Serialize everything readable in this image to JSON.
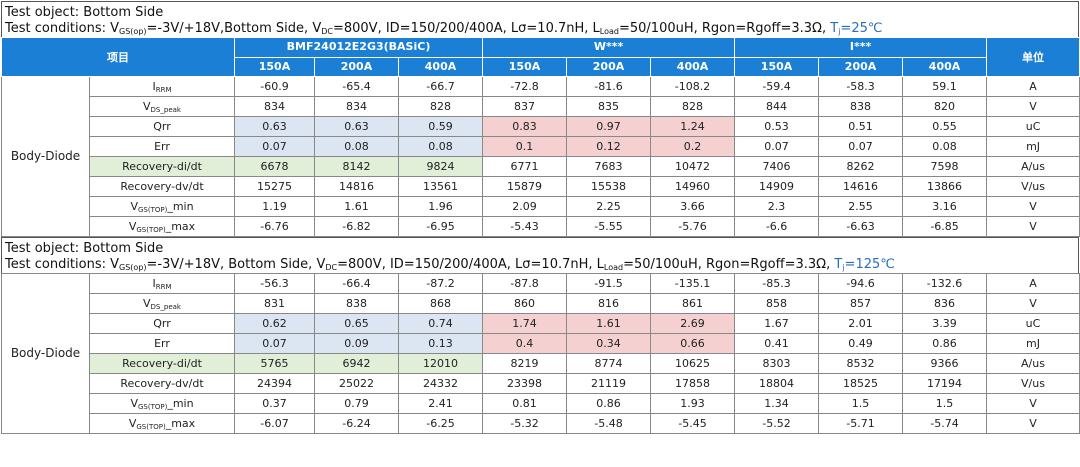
{
  "columns": {
    "item_label": "项目",
    "unit_label": "单位",
    "groups": [
      "BMF24012E2G3(BASiC)",
      "W***",
      "I***"
    ],
    "currents": [
      "150A",
      "200A",
      "400A"
    ]
  },
  "sections": [
    {
      "test_object": "Test object: Bottom Side",
      "cond": {
        "pre": "Test conditions: V",
        "sub1": "GS(op)",
        "mid1": "=-3V/+18V,Bottom Side, V",
        "sub2": "DC",
        "mid2": "=800V, ID=150/200/400A, Lσ=10.7nH, L",
        "sub3": "Load",
        "mid3": "=50/100uH, Rgon=Rgoff=3.3Ω, ",
        "tj_main": "T",
        "tj_sub": "j",
        "tj_val": "=25℃"
      },
      "group_label": "Body-Diode",
      "rows": [
        {
          "p_main": "I",
          "p_sub": "RRM",
          "p_suffix": "",
          "values": [
            "-60.9",
            "-65.4",
            "-66.7",
            "-72.8",
            "-81.6",
            "-108.2",
            "-59.4",
            "-58.3",
            "59.1"
          ],
          "unit": "A"
        },
        {
          "p_main": "V",
          "p_sub": "DS_peak",
          "p_suffix": "",
          "values": [
            "834",
            "834",
            "828",
            "837",
            "835",
            "828",
            "844",
            "838",
            "820"
          ],
          "unit": "V"
        },
        {
          "p_main": "Qrr",
          "p_sub": "",
          "p_suffix": "",
          "values": [
            "0.63",
            "0.63",
            "0.59",
            "0.83",
            "0.97",
            "1.24",
            "0.53",
            "0.51",
            "0.55"
          ],
          "unit": "uC"
        },
        {
          "p_main": "Err",
          "p_sub": "",
          "p_suffix": "",
          "values": [
            "0.07",
            "0.08",
            "0.08",
            "0.1",
            "0.12",
            "0.2",
            "0.07",
            "0.07",
            "0.08"
          ],
          "unit": "mJ"
        },
        {
          "p_main": "Recovery-di/dt",
          "p_sub": "",
          "p_suffix": "",
          "values": [
            "6678",
            "8142",
            "9824",
            "6771",
            "7683",
            "10472",
            "7406",
            "8262",
            "7598"
          ],
          "unit": "A/us"
        },
        {
          "p_main": "Recovery-dv/dt",
          "p_sub": "",
          "p_suffix": "",
          "values": [
            "15275",
            "14816",
            "13561",
            "15879",
            "15538",
            "14960",
            "14909",
            "14616",
            "13866"
          ],
          "unit": "V/us"
        },
        {
          "p_main": "V",
          "p_sub": "GS(TOP)",
          "p_suffix": "_min",
          "values": [
            "1.19",
            "1.61",
            "1.96",
            "2.09",
            "2.25",
            "3.66",
            "2.3",
            "2.55",
            "3.16"
          ],
          "unit": "V"
        },
        {
          "p_main": "V",
          "p_sub": "GS(TOP)",
          "p_suffix": "_max",
          "values": [
            "-6.76",
            "-6.82",
            "-6.95",
            "-5.43",
            "-5.55",
            "-5.76",
            "-6.6",
            "-6.63",
            "-6.85"
          ],
          "unit": "V"
        }
      ]
    },
    {
      "test_object": "Test object: Bottom Side",
      "cond": {
        "pre": "Test conditions: V",
        "sub1": "GS(op)",
        "mid1": "=-3V/+18V, Bottom Side, V",
        "sub2": "DC",
        "mid2": "=800V, ID=150/200/400A, Lσ=10.7nH, L",
        "sub3": "Load",
        "mid3": "=50/100uH, Rgon=Rgoff=3.3Ω, ",
        "tj_main": "T",
        "tj_sub": "j",
        "tj_val": "=125℃"
      },
      "group_label": "Body-Diode",
      "rows": [
        {
          "p_main": "I",
          "p_sub": "RRM",
          "p_suffix": "",
          "values": [
            "-56.3",
            "-66.4",
            "-87.2",
            "-87.8",
            "-91.5",
            "-135.1",
            "-85.3",
            "-94.6",
            "-132.6"
          ],
          "unit": "A"
        },
        {
          "p_main": "V",
          "p_sub": "DS_peak",
          "p_suffix": "",
          "values": [
            "831",
            "838",
            "868",
            "860",
            "816",
            "861",
            "858",
            "857",
            "836"
          ],
          "unit": "V"
        },
        {
          "p_main": "Qrr",
          "p_sub": "",
          "p_suffix": "",
          "values": [
            "0.62",
            "0.65",
            "0.74",
            "1.74",
            "1.61",
            "2.69",
            "1.67",
            "2.01",
            "3.39"
          ],
          "unit": "uC"
        },
        {
          "p_main": "Err",
          "p_sub": "",
          "p_suffix": "",
          "values": [
            "0.07",
            "0.09",
            "0.13",
            "0.4",
            "0.34",
            "0.66",
            "0.41",
            "0.49",
            "0.86"
          ],
          "unit": "mJ"
        },
        {
          "p_main": "Recovery-di/dt",
          "p_sub": "",
          "p_suffix": "",
          "values": [
            "5765",
            "6942",
            "12010",
            "8219",
            "8774",
            "10625",
            "8303",
            "8532",
            "9366"
          ],
          "unit": "A/us"
        },
        {
          "p_main": "Recovery-dv/dt",
          "p_sub": "",
          "p_suffix": "",
          "values": [
            "24394",
            "25022",
            "24332",
            "23398",
            "21119",
            "17858",
            "18804",
            "18525",
            "17194"
          ],
          "unit": "V/us"
        },
        {
          "p_main": "V",
          "p_sub": "GS(TOP)",
          "p_suffix": "_min",
          "values": [
            "0.37",
            "0.79",
            "2.41",
            "0.81",
            "0.86",
            "1.93",
            "1.34",
            "1.5",
            "1.5"
          ],
          "unit": "V"
        },
        {
          "p_main": "V",
          "p_sub": "GS(TOP)",
          "p_suffix": "_max",
          "values": [
            "-6.07",
            "-6.24",
            "-6.25",
            "-5.32",
            "-5.48",
            "-5.45",
            "-5.52",
            "-5.71",
            "-5.74"
          ],
          "unit": "V"
        }
      ]
    }
  ],
  "highlight_colors": {
    "basic": "#dce6f2",
    "w": "#f4d0d0",
    "didt": "#e2efd8"
  }
}
